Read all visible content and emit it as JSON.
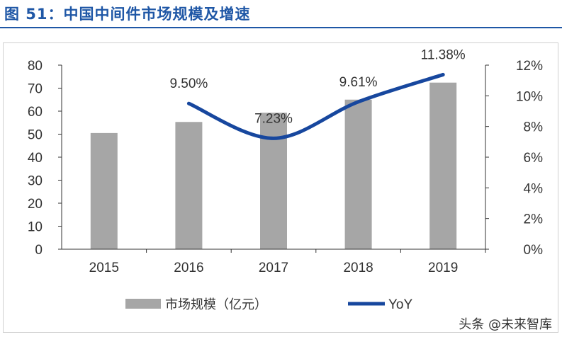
{
  "figure": {
    "title": "图 51：中国中间件市场规模及增速",
    "watermark": "头条 @未来智库"
  },
  "colors": {
    "title": "#1f57a6",
    "bar": "#a6a6a6",
    "line": "#17479e",
    "axis": "#333333",
    "text": "#333333"
  },
  "chart_data": {
    "type": "bar",
    "categories": [
      "2015",
      "2016",
      "2017",
      "2018",
      "2019"
    ],
    "series": [
      {
        "name": "市场规模（亿元）",
        "type": "bar",
        "axis": "left",
        "values": [
          50.5,
          55.3,
          59.3,
          65.0,
          72.4
        ]
      },
      {
        "name": "YoY",
        "type": "line",
        "axis": "right",
        "values": [
          null,
          9.5,
          7.23,
          9.61,
          11.38
        ]
      }
    ],
    "data_labels": [
      "",
      "9.50%",
      "7.23%",
      "9.61%",
      "11.38%"
    ],
    "left_axis": {
      "ylim": [
        0,
        80
      ],
      "ticks": [
        "0",
        "10",
        "20",
        "30",
        "40",
        "50",
        "60",
        "70",
        "80"
      ]
    },
    "right_axis": {
      "ylim": [
        0,
        12
      ],
      "ticks": [
        "0%",
        "2%",
        "4%",
        "6%",
        "8%",
        "10%",
        "12%"
      ]
    },
    "grid": false,
    "legend": {
      "position": "bottom",
      "items": [
        "市场规模（亿元）",
        "YoY"
      ]
    }
  }
}
